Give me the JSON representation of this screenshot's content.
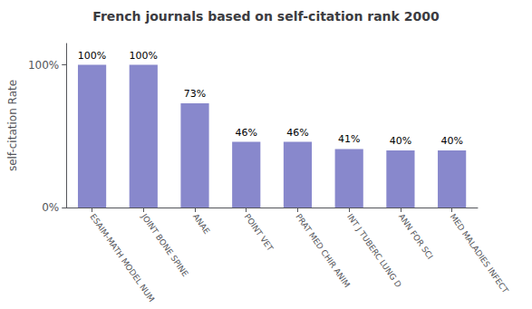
{
  "chart_data": {
    "type": "bar",
    "title": "French journals based on self-citation rank 2000",
    "categories": [
      "ESAIM-MATH MODEL NUM",
      "JOINT BONE SPINE",
      "ANAE",
      "POINT VET",
      "PRAT MED CHIR ANIM",
      "INT J TUBERC LUNG D",
      "ANN FOR SCI",
      "MED MALADIES INFECT"
    ],
    "values": [
      100,
      100,
      73,
      46,
      46,
      41,
      40,
      40
    ],
    "value_labels": [
      "100%",
      "100%",
      "73%",
      "46%",
      "46%",
      "41%",
      "40%",
      "40%"
    ],
    "data_labels": true,
    "color": "#8888cc",
    "ylabel": "self-citation Rate",
    "ylim": [
      0,
      115
    ],
    "yticks": [
      {
        "value": 0,
        "label": "0%"
      },
      {
        "value": 100,
        "label": "100%"
      }
    ],
    "grid": false
  }
}
